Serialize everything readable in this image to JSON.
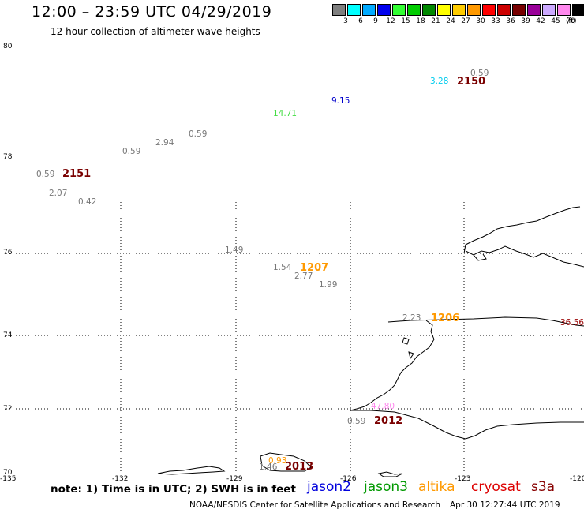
{
  "header": {
    "title": "12:00 – 23:59 UTC 04/29/2019",
    "subtitle": "12 hour collection of altimeter wave heights"
  },
  "legend": {
    "unit": "(ft)",
    "levels": [
      "3",
      "6",
      "9",
      "12",
      "15",
      "18",
      "21",
      "24",
      "27",
      "30",
      "33",
      "36",
      "39",
      "42",
      "45",
      "70"
    ],
    "colors": [
      "#7f7f7f",
      "#00ffff",
      "#00aaff",
      "#0000ee",
      "#33ff33",
      "#00cc00",
      "#008800",
      "#ffff00",
      "#ffcc00",
      "#ff9900",
      "#ff0000",
      "#cc0000",
      "#770000",
      "#990099",
      "#ccaaff",
      "#ff88ee",
      "#000000"
    ]
  },
  "axes": {
    "lat_labels": [
      "80",
      "78",
      "76",
      "74",
      "72",
      "70"
    ],
    "lon_labels": [
      "-135",
      "-132",
      "-129",
      "-126",
      "-123",
      "-120"
    ]
  },
  "wave_heights": [
    {
      "text": "0.59",
      "color": "#777777"
    },
    {
      "text": "3.28",
      "color": "#00ccee"
    },
    {
      "text": "9.15",
      "color": "#0000cc"
    },
    {
      "text": "14.71",
      "color": "#44dd44"
    },
    {
      "text": "0.59",
      "color": "#777777"
    },
    {
      "text": "2.94",
      "color": "#777777"
    },
    {
      "text": "0.59",
      "color": "#777777"
    },
    {
      "text": "0.59",
      "color": "#777777"
    },
    {
      "text": "2.07",
      "color": "#777777"
    },
    {
      "text": "0.42",
      "color": "#777777"
    },
    {
      "text": "1.49",
      "color": "#777777"
    },
    {
      "text": "1.54",
      "color": "#777777"
    },
    {
      "text": "2.77",
      "color": "#777777"
    },
    {
      "text": "1.99",
      "color": "#777777"
    },
    {
      "text": "2.23",
      "color": "#777777"
    },
    {
      "text": "36.56",
      "color": "#990000"
    },
    {
      "text": "47.80",
      "color": "#ff88ee"
    },
    {
      "text": "0.59",
      "color": "#777777"
    },
    {
      "text": "0.93",
      "color": "#ff9900"
    },
    {
      "text": "1.46",
      "color": "#777777"
    }
  ],
  "pass_times": [
    {
      "text": "2150",
      "color": "#7a0000"
    },
    {
      "text": "2151",
      "color": "#7a0000"
    },
    {
      "text": "1207",
      "color": "#ff9900"
    },
    {
      "text": "1206",
      "color": "#ff9900"
    },
    {
      "text": "2012",
      "color": "#7a0000"
    },
    {
      "text": "2013",
      "color": "#7a0000"
    }
  ],
  "footer": {
    "note": "note: 1) Time is in UTC; 2) SWH is in feet",
    "satellites": [
      {
        "name": "jason2",
        "color": "#0000dd"
      },
      {
        "name": "jason3",
        "color": "#009900"
      },
      {
        "name": "altika",
        "color": "#ff9900"
      },
      {
        "name": "cryosat",
        "color": "#dd0000"
      },
      {
        "name": "s3a",
        "color": "#880000"
      }
    ],
    "credit": "NOAA/NESDIS Center for Satellite Applications and Research",
    "timestamp": "Apr 30 12:27:44 UTC 2019"
  }
}
